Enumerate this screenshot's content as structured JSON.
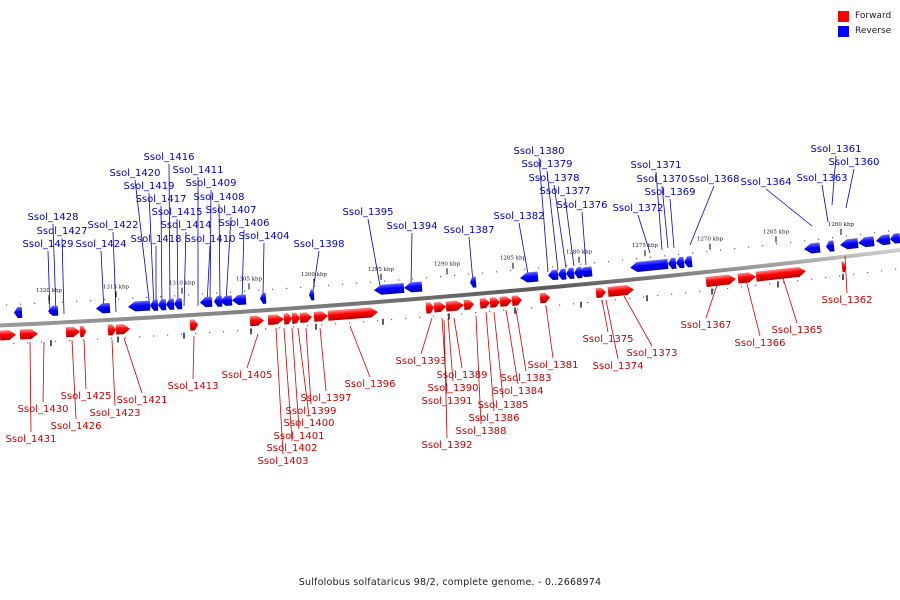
{
  "legend": {
    "forward": {
      "label": "Forward",
      "color": "#ff0000"
    },
    "reverse": {
      "label": "Reverse",
      "color": "#0000ff"
    }
  },
  "caption": "Sulfolobus solfataricus 98/2, complete genome. - 0..2668974",
  "scale_ticks": [
    "1320 kbp",
    "1315 kbp",
    "1310 kbp",
    "1305 kbp",
    "1300 kbp",
    "1295 kbp",
    "1290 kbp",
    "1285 kbp",
    "1280 kbp",
    "1275 kbp",
    "1270 kbp",
    "1265 kbp",
    "1260 kbp"
  ],
  "reverse_genes": [
    "Ssol_1361",
    "Ssol_1360",
    "Ssol_1363",
    "Ssol_1364",
    "Ssol_1368",
    "Ssol_1369",
    "Ssol_1370",
    "Ssol_1371",
    "Ssol_1372",
    "Ssol_1376",
    "Ssol_1377",
    "Ssol_1378",
    "Ssol_1379",
    "Ssol_1380",
    "Ssol_1382",
    "Ssol_1387",
    "Ssol_1394",
    "Ssol_1395",
    "Ssol_1398",
    "Ssol_1404",
    "Ssol_1406",
    "Ssol_1407",
    "Ssol_1408",
    "Ssol_1409",
    "Ssol_1410",
    "Ssol_1411",
    "Ssol_1414",
    "Ssol_1415",
    "Ssol_1416",
    "Ssol_1417",
    "Ssol_1418",
    "Ssol_1419",
    "Ssol_1420",
    "Ssol_1422",
    "Ssol_1424",
    "Ssol_1427",
    "Ssol_1428",
    "Ssol_1429"
  ],
  "forward_genes": [
    "Ssol_1362",
    "Ssol_1365",
    "Ssol_1366",
    "Ssol_1367",
    "Ssol_1373",
    "Ssol_1374",
    "Ssol_1375",
    "Ssol_1381",
    "Ssol_1383",
    "Ssol_1384",
    "Ssol_1385",
    "Ssol_1386",
    "Ssol_1388",
    "Ssol_1389",
    "Ssol_1390",
    "Ssol_1391",
    "Ssol_1392",
    "Ssol_1393",
    "Ssol_1396",
    "Ssol_1397",
    "Ssol_1399",
    "Ssol_1400",
    "Ssol_1401",
    "Ssol_1402",
    "Ssol_1403",
    "Ssol_1405",
    "Ssol_1413",
    "Ssol_1421",
    "Ssol_1423",
    "Ssol_1425",
    "Ssol_1426",
    "Ssol_1430",
    "Ssol_1431"
  ]
}
